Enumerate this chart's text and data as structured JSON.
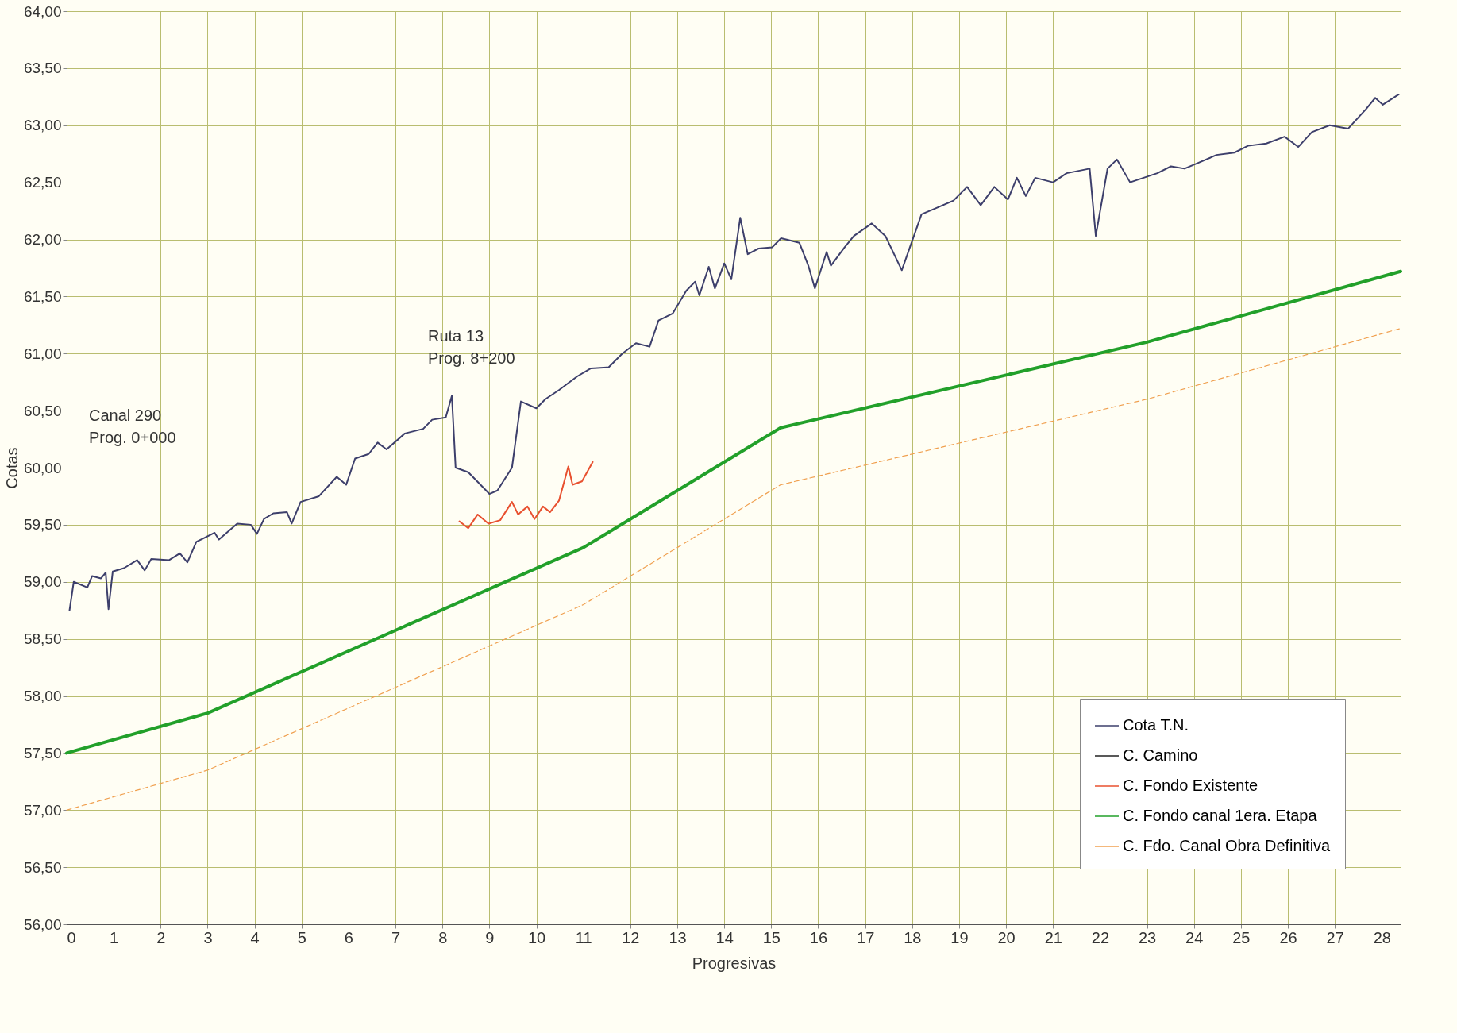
{
  "chart_data": {
    "type": "line",
    "xlabel": "Progresivas",
    "ylabel": "Cotas",
    "xlim": [
      0,
      28.4
    ],
    "xticks": [
      0,
      1,
      2,
      3,
      4,
      5,
      6,
      7,
      8,
      9,
      10,
      11,
      12,
      13,
      14,
      15,
      16,
      17,
      18,
      19,
      20,
      21,
      22,
      23,
      24,
      25,
      26,
      27,
      28
    ],
    "ylim": [
      56,
      64
    ],
    "yticks": [
      {
        "value": 56,
        "label": "56,00"
      },
      {
        "value": 56.5,
        "label": "56,50"
      },
      {
        "value": 57,
        "label": "57,00"
      },
      {
        "value": 57.5,
        "label": "57,50"
      },
      {
        "value": 58,
        "label": "58,00"
      },
      {
        "value": 58.5,
        "label": "58,50"
      },
      {
        "value": 59,
        "label": "59,00"
      },
      {
        "value": 59.5,
        "label": "59,50"
      },
      {
        "value": 60,
        "label": "60,00"
      },
      {
        "value": 60.5,
        "label": "60,50"
      },
      {
        "value": 61,
        "label": "61,00"
      },
      {
        "value": 61.5,
        "label": "61,50"
      },
      {
        "value": 62,
        "label": "62,00"
      },
      {
        "value": 62.5,
        "label": "62,50"
      },
      {
        "value": 63,
        "label": "63,00"
      },
      {
        "value": 63.5,
        "label": "63,50"
      },
      {
        "value": 64,
        "label": "64,00"
      }
    ],
    "grid": true,
    "legend": "bottom right",
    "annotations": [
      "Canal 290\nProg. 0+000",
      "Ruta 13\nProg. 8+200"
    ],
    "series": [
      {
        "name": "Cota T.N.",
        "color": "#3d3f6b",
        "line_style": "solid",
        "x": [
          0.06,
          0.15,
          0.44,
          0.54,
          0.73,
          0.83,
          0.89,
          0.98,
          1.22,
          1.5,
          1.66,
          1.8,
          2.18,
          2.41,
          2.57,
          2.76,
          3.15,
          3.24,
          3.63,
          3.92,
          4.05,
          4.2,
          4.4,
          4.69,
          4.79,
          4.98,
          5.37,
          5.75,
          5.95,
          6.14,
          6.43,
          6.62,
          6.81,
          7.2,
          7.59,
          7.78,
          8.07,
          8.2,
          8.28,
          8.55,
          9.0,
          9.17,
          9.48,
          9.67,
          10.0,
          10.19,
          10.48,
          10.87,
          11.16,
          11.54,
          11.83,
          12.12,
          12.41,
          12.6,
          12.9,
          13.19,
          13.38,
          13.47,
          13.67,
          13.8,
          14.0,
          14.15,
          14.34,
          14.5,
          14.73,
          15.02,
          15.21,
          15.6,
          15.79,
          15.93,
          16.18,
          16.27,
          16.56,
          16.76,
          17.14,
          17.43,
          17.78,
          18.2,
          18.49,
          18.88,
          19.17,
          19.46,
          19.75,
          20.04,
          20.23,
          20.42,
          20.62,
          21.0,
          21.29,
          21.78,
          21.91,
          22.16,
          22.36,
          22.64,
          22.93,
          23.22,
          23.51,
          23.8,
          24.09,
          24.48,
          24.86,
          25.15,
          25.54,
          25.93,
          26.22,
          26.51,
          26.89,
          27.28,
          27.66,
          27.86,
          28.02,
          28.36
        ],
        "values": [
          58.75,
          59.0,
          58.95,
          59.05,
          59.03,
          59.08,
          58.76,
          59.09,
          59.12,
          59.19,
          59.1,
          59.2,
          59.19,
          59.25,
          59.17,
          59.35,
          59.43,
          59.37,
          59.51,
          59.5,
          59.42,
          59.55,
          59.6,
          59.61,
          59.51,
          59.7,
          59.75,
          59.92,
          59.85,
          60.08,
          60.12,
          60.22,
          60.16,
          60.3,
          60.34,
          60.42,
          60.44,
          60.63,
          60.0,
          59.96,
          59.77,
          59.8,
          60.0,
          60.58,
          60.52,
          60.6,
          60.68,
          60.8,
          60.87,
          60.88,
          61.0,
          61.09,
          61.06,
          61.29,
          61.35,
          61.55,
          61.63,
          61.51,
          61.76,
          61.57,
          61.79,
          61.65,
          62.19,
          61.87,
          61.92,
          61.93,
          62.01,
          61.97,
          61.77,
          61.57,
          61.89,
          61.77,
          61.93,
          62.03,
          62.14,
          62.03,
          61.73,
          62.22,
          62.27,
          62.34,
          62.46,
          62.3,
          62.46,
          62.35,
          62.54,
          62.38,
          62.54,
          62.5,
          62.58,
          62.62,
          62.03,
          62.62,
          62.7,
          62.5,
          62.54,
          62.58,
          62.64,
          62.62,
          62.67,
          62.74,
          62.76,
          62.82,
          62.84,
          62.9,
          62.81,
          62.94,
          63.0,
          62.97,
          63.14,
          63.24,
          63.18,
          63.27
        ]
      },
      {
        "name": "C. Camino",
        "color": "#222222",
        "line_style": "solid"
      },
      {
        "name": "C. Fondo Existente",
        "color": "#e8502f",
        "line_style": "solid",
        "x": [
          8.36,
          8.55,
          8.75,
          8.98,
          9.23,
          9.48,
          9.61,
          9.81,
          9.96,
          10.14,
          10.29,
          10.48,
          10.68,
          10.77,
          10.97,
          11.2
        ],
        "values": [
          59.53,
          59.47,
          59.59,
          59.51,
          59.54,
          59.7,
          59.59,
          59.66,
          59.55,
          59.66,
          59.61,
          59.71,
          60.01,
          59.85,
          59.88,
          60.05
        ]
      },
      {
        "name": "C. Fondo canal 1era. Etapa",
        "color": "#22a02a",
        "line_style": "solid",
        "x": [
          0,
          3,
          11,
          15.2,
          23,
          28.4
        ],
        "values": [
          57.5,
          57.85,
          59.3,
          60.35,
          61.1,
          61.72
        ]
      },
      {
        "name": "C. Fdo. Canal Obra Definitiva",
        "color": "#f0a050",
        "line_style": "dashed",
        "x": [
          0,
          3,
          11,
          15.2,
          23,
          28.4
        ],
        "values": [
          57.0,
          57.35,
          58.8,
          59.85,
          60.6,
          61.22
        ]
      }
    ]
  }
}
